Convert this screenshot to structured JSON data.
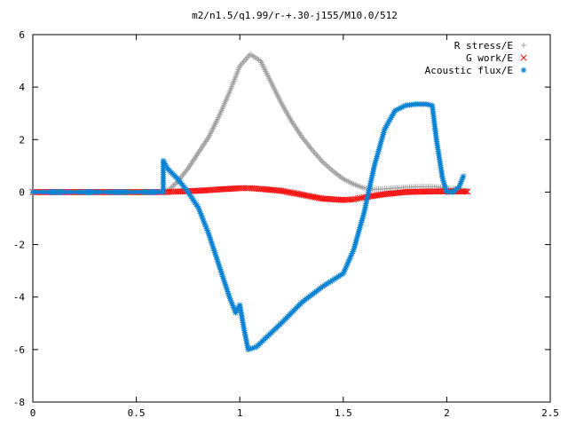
{
  "chart_data": {
    "type": "scatter",
    "title": "m2/n1.5/q1.99/r-+.30-j155/M10.0/512",
    "xlabel": "",
    "ylabel": "",
    "xlim": [
      0,
      2.5
    ],
    "ylim": [
      -8,
      6
    ],
    "xticks": [
      "0",
      "0.5",
      "1",
      "1.5",
      "2",
      "2.5"
    ],
    "yticks": [
      "-8",
      "-6",
      "-4",
      "-2",
      "0",
      "2",
      "4",
      "6"
    ],
    "grid": false,
    "legend_position": "top-right",
    "series": [
      {
        "name": "R stress/E",
        "marker": "plus",
        "color": "#a0a0a0",
        "points": [
          [
            0,
            0
          ],
          [
            0.1,
            0
          ],
          [
            0.2,
            0
          ],
          [
            0.3,
            0
          ],
          [
            0.4,
            0
          ],
          [
            0.5,
            0
          ],
          [
            0.6,
            0
          ],
          [
            0.63,
            0
          ],
          [
            0.66,
            0.1
          ],
          [
            0.7,
            0.4
          ],
          [
            0.75,
            0.9
          ],
          [
            0.8,
            1.5
          ],
          [
            0.85,
            2.1
          ],
          [
            0.9,
            2.9
          ],
          [
            0.95,
            3.8
          ],
          [
            1.0,
            4.8
          ],
          [
            1.05,
            5.25
          ],
          [
            1.1,
            5.0
          ],
          [
            1.15,
            4.2
          ],
          [
            1.2,
            3.4
          ],
          [
            1.25,
            2.7
          ],
          [
            1.3,
            2.1
          ],
          [
            1.35,
            1.6
          ],
          [
            1.4,
            1.15
          ],
          [
            1.45,
            0.8
          ],
          [
            1.5,
            0.5
          ],
          [
            1.55,
            0.3
          ],
          [
            1.6,
            0.15
          ],
          [
            1.65,
            0.1
          ],
          [
            1.7,
            0.12
          ],
          [
            1.75,
            0.15
          ],
          [
            1.8,
            0.18
          ],
          [
            1.85,
            0.2
          ],
          [
            1.9,
            0.2
          ],
          [
            1.95,
            0.2
          ],
          [
            2.0,
            0.15
          ],
          [
            2.05,
            0.1
          ],
          [
            2.1,
            0.05
          ]
        ]
      },
      {
        "name": "G work/E",
        "marker": "cross",
        "color": "#ff0000",
        "points": [
          [
            0,
            0
          ],
          [
            0.1,
            0
          ],
          [
            0.2,
            0
          ],
          [
            0.3,
            0
          ],
          [
            0.4,
            0
          ],
          [
            0.5,
            0
          ],
          [
            0.6,
            0
          ],
          [
            0.63,
            0
          ],
          [
            0.7,
            0.02
          ],
          [
            0.8,
            0.05
          ],
          [
            0.9,
            0.1
          ],
          [
            1.0,
            0.15
          ],
          [
            1.05,
            0.15
          ],
          [
            1.1,
            0.12
          ],
          [
            1.2,
            0.05
          ],
          [
            1.3,
            -0.1
          ],
          [
            1.4,
            -0.25
          ],
          [
            1.5,
            -0.3
          ],
          [
            1.55,
            -0.28
          ],
          [
            1.6,
            -0.2
          ],
          [
            1.7,
            -0.08
          ],
          [
            1.8,
            0.0
          ],
          [
            1.9,
            0.02
          ],
          [
            2.0,
            0.03
          ],
          [
            2.1,
            0.02
          ]
        ]
      },
      {
        "name": "Acoustic flux/E",
        "marker": "star",
        "color": "#0b83d3",
        "points": [
          [
            0,
            0
          ],
          [
            0.1,
            0
          ],
          [
            0.2,
            0
          ],
          [
            0.3,
            0
          ],
          [
            0.4,
            0
          ],
          [
            0.5,
            0
          ],
          [
            0.6,
            0
          ],
          [
            0.63,
            0
          ],
          [
            0.63,
            1.2
          ],
          [
            0.65,
            0.9
          ],
          [
            0.7,
            0.5
          ],
          [
            0.75,
            0.0
          ],
          [
            0.8,
            -0.6
          ],
          [
            0.85,
            -1.6
          ],
          [
            0.9,
            -2.8
          ],
          [
            0.95,
            -4.0
          ],
          [
            0.98,
            -4.6
          ],
          [
            1.0,
            -4.3
          ],
          [
            1.02,
            -5.2
          ],
          [
            1.04,
            -6.0
          ],
          [
            1.08,
            -5.9
          ],
          [
            1.12,
            -5.6
          ],
          [
            1.2,
            -5.0
          ],
          [
            1.3,
            -4.2
          ],
          [
            1.4,
            -3.6
          ],
          [
            1.5,
            -3.1
          ],
          [
            1.55,
            -2.2
          ],
          [
            1.6,
            -0.8
          ],
          [
            1.65,
            1.0
          ],
          [
            1.7,
            2.4
          ],
          [
            1.75,
            3.1
          ],
          [
            1.8,
            3.3
          ],
          [
            1.85,
            3.35
          ],
          [
            1.9,
            3.35
          ],
          [
            1.93,
            3.3
          ],
          [
            1.95,
            2.0
          ],
          [
            1.98,
            0.5
          ],
          [
            2.0,
            0.0
          ],
          [
            2.03,
            0.0
          ],
          [
            2.06,
            0.2
          ],
          [
            2.08,
            0.6
          ]
        ]
      }
    ]
  }
}
